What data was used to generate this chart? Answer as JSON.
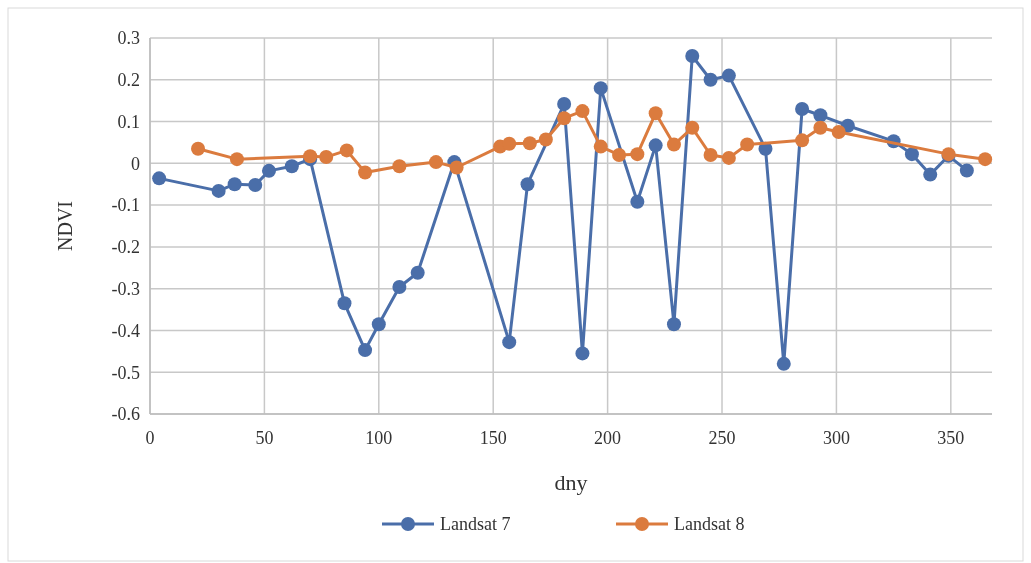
{
  "chart_data": {
    "type": "line",
    "xlabel": "dny",
    "ylabel": "NDVI",
    "xlim": [
      0,
      368
    ],
    "xticks": [
      0,
      50,
      100,
      150,
      200,
      250,
      300,
      350
    ],
    "ylim": [
      -0.6,
      0.3
    ],
    "yticks": [
      -0.6,
      -0.5,
      -0.4,
      -0.3,
      -0.2,
      -0.1,
      0,
      0.1,
      0.2,
      0.3
    ],
    "grid": true,
    "legend": "bottom",
    "marker": "circle",
    "line_style": "solid",
    "series": [
      {
        "name": "Landsat 7",
        "color": "#4a6ea9",
        "x": [
          4,
          30,
          37,
          46,
          52,
          62,
          70,
          85,
          94,
          100,
          109,
          117,
          133,
          157,
          165,
          181,
          189,
          197,
          213,
          221,
          229,
          237,
          245,
          253,
          269,
          277,
          285,
          293,
          305,
          325,
          333,
          341,
          349,
          357
        ],
        "values": [
          -0.036,
          -0.066,
          -0.05,
          -0.052,
          -0.018,
          -0.007,
          0.01,
          -0.335,
          -0.447,
          -0.385,
          -0.296,
          -0.262,
          0.003,
          -0.428,
          -0.05,
          0.142,
          -0.455,
          0.18,
          -0.092,
          0.043,
          -0.385,
          0.257,
          0.2,
          0.21,
          0.035,
          -0.48,
          0.13,
          0.115,
          0.09,
          0.053,
          0.022,
          -0.027,
          0.018,
          -0.017
        ]
      },
      {
        "name": "Landsat 8",
        "color": "#db7b3e",
        "x": [
          21,
          38,
          70,
          77,
          86,
          94,
          109,
          125,
          134,
          153,
          157,
          166,
          173,
          181,
          189,
          197,
          205,
          213,
          221,
          229,
          237,
          245,
          253,
          261,
          285,
          293,
          301,
          349,
          365
        ],
        "values": [
          0.035,
          0.01,
          0.017,
          0.015,
          0.031,
          -0.022,
          -0.007,
          0.003,
          -0.01,
          0.04,
          0.047,
          0.048,
          0.057,
          0.108,
          0.125,
          0.04,
          0.02,
          0.022,
          0.12,
          0.045,
          0.085,
          0.02,
          0.013,
          0.045,
          0.055,
          0.085,
          0.075,
          0.022,
          0.01
        ]
      }
    ]
  }
}
